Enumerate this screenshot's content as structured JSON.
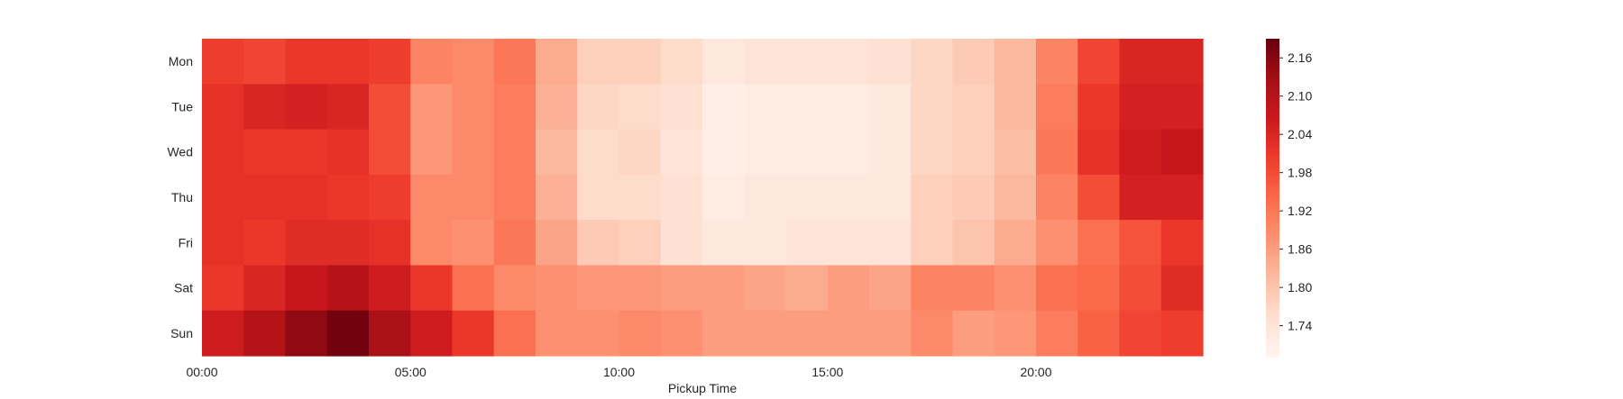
{
  "chart_data": {
    "type": "heatmap",
    "title": "",
    "xlabel": "Pickup Time",
    "ylabel": "",
    "rows": [
      "Mon",
      "Tue",
      "Wed",
      "Thu",
      "Fri",
      "Sat",
      "Sun"
    ],
    "x_tick_labels": [
      "00:00",
      "05:00",
      "10:00",
      "15:00",
      "20:00"
    ],
    "x_tick_hours": [
      0,
      5,
      10,
      15,
      20
    ],
    "hours": [
      0,
      1,
      2,
      3,
      4,
      5,
      6,
      7,
      8,
      9,
      10,
      11,
      12,
      13,
      14,
      15,
      16,
      17,
      18,
      19,
      20,
      21,
      22,
      23
    ],
    "values": [
      [
        2.0,
        1.99,
        2.01,
        2.01,
        2.0,
        1.9,
        1.89,
        1.92,
        1.84,
        1.78,
        1.78,
        1.76,
        1.73,
        1.74,
        1.74,
        1.74,
        1.75,
        1.77,
        1.79,
        1.82,
        1.9,
        1.99,
        2.04,
        2.04
      ],
      [
        2.02,
        2.04,
        2.05,
        2.04,
        1.98,
        1.87,
        1.89,
        1.91,
        1.83,
        1.77,
        1.76,
        1.75,
        1.71,
        1.72,
        1.72,
        1.72,
        1.73,
        1.77,
        1.78,
        1.82,
        1.91,
        2.01,
        2.05,
        2.05
      ],
      [
        2.02,
        2.01,
        2.01,
        2.02,
        1.98,
        1.87,
        1.89,
        1.91,
        1.82,
        1.76,
        1.77,
        1.74,
        1.71,
        1.72,
        1.72,
        1.72,
        1.73,
        1.77,
        1.78,
        1.81,
        1.92,
        2.02,
        2.06,
        2.07
      ],
      [
        2.02,
        2.02,
        2.02,
        2.01,
        2.0,
        1.89,
        1.89,
        1.91,
        1.83,
        1.76,
        1.76,
        1.75,
        1.72,
        1.73,
        1.73,
        1.73,
        1.73,
        1.78,
        1.79,
        1.82,
        1.9,
        1.98,
        2.05,
        2.05
      ],
      [
        2.02,
        2.01,
        2.03,
        2.03,
        2.02,
        1.89,
        1.88,
        1.92,
        1.85,
        1.79,
        1.78,
        1.75,
        1.73,
        1.73,
        1.74,
        1.74,
        1.74,
        1.78,
        1.8,
        1.84,
        1.88,
        1.93,
        1.97,
        2.01
      ],
      [
        2.01,
        2.04,
        2.07,
        2.1,
        2.06,
        2.01,
        1.93,
        1.89,
        1.88,
        1.87,
        1.87,
        1.86,
        1.86,
        1.85,
        1.84,
        1.86,
        1.85,
        1.9,
        1.9,
        1.88,
        1.93,
        1.94,
        1.98,
        2.03
      ],
      [
        2.06,
        2.1,
        2.15,
        2.18,
        2.12,
        2.06,
        2.01,
        1.93,
        1.88,
        1.88,
        1.89,
        1.88,
        1.86,
        1.86,
        1.86,
        1.86,
        1.86,
        1.89,
        1.86,
        1.87,
        1.91,
        1.95,
        1.99,
        2.0
      ]
    ],
    "color_scale": "Reds",
    "vmin": 1.69,
    "vmax": 2.19,
    "colorbar_ticks": [
      1.74,
      1.8,
      1.86,
      1.92,
      1.98,
      2.04,
      2.1,
      2.16
    ],
    "colorbar_tick_labels": [
      "1.74",
      "1.80",
      "1.86",
      "1.92",
      "1.98",
      "2.04",
      "2.10",
      "2.16"
    ],
    "grid": false,
    "legend": "colorbar-right"
  }
}
